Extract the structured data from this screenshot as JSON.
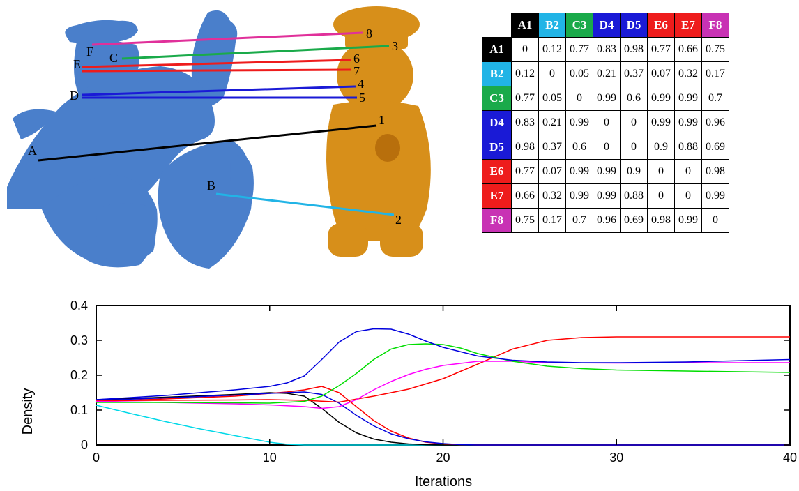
{
  "scene": {
    "left_labels": [
      "A",
      "B",
      "C",
      "D",
      "E",
      "F"
    ],
    "right_labels": [
      "1",
      "2",
      "3",
      "4",
      "5",
      "6",
      "7",
      "8"
    ],
    "shape_colors": {
      "left_models": "#4a7fcb",
      "right_model": "#d78f1a"
    }
  },
  "matrix": {
    "headers": [
      {
        "label": "A1",
        "color": "#000000"
      },
      {
        "label": "B2",
        "color": "#21b4e6"
      },
      {
        "label": "C3",
        "color": "#1aaa4a"
      },
      {
        "label": "D4",
        "color": "#1a1ad6"
      },
      {
        "label": "D5",
        "color": "#1a1ad6"
      },
      {
        "label": "E6",
        "color": "#ee1c1c"
      },
      {
        "label": "E7",
        "color": "#ee1c1c"
      },
      {
        "label": "F8",
        "color": "#c832b4"
      }
    ],
    "rows": [
      [
        "0",
        "0.12",
        "0.77",
        "0.83",
        "0.98",
        "0.77",
        "0.66",
        "0.75"
      ],
      [
        "0.12",
        "0",
        "0.05",
        "0.21",
        "0.37",
        "0.07",
        "0.32",
        "0.17"
      ],
      [
        "0.77",
        "0.05",
        "0",
        "0.99",
        "0.6",
        "0.99",
        "0.99",
        "0.7"
      ],
      [
        "0.83",
        "0.21",
        "0.99",
        "0",
        "0",
        "0.99",
        "0.99",
        "0.96"
      ],
      [
        "0.98",
        "0.37",
        "0.6",
        "0",
        "0",
        "0.9",
        "0.88",
        "0.69"
      ],
      [
        "0.77",
        "0.07",
        "0.99",
        "0.99",
        "0.9",
        "0",
        "0",
        "0.98"
      ],
      [
        "0.66",
        "0.32",
        "0.99",
        "0.99",
        "0.88",
        "0",
        "0",
        "0.99"
      ],
      [
        "0.75",
        "0.17",
        "0.7",
        "0.96",
        "0.69",
        "0.98",
        "0.99",
        "0"
      ]
    ]
  },
  "chart_data": {
    "type": "line",
    "xlabel": "Iterations",
    "ylabel": "Density",
    "xlim": [
      0,
      40
    ],
    "ylim": [
      0,
      0.4
    ],
    "xticks": [
      "0",
      "10",
      "20",
      "30",
      "40"
    ],
    "yticks": [
      "0",
      "0.1",
      "0.2",
      "0.3",
      "0.4"
    ],
    "grid": false,
    "series": [
      {
        "color": "#00d8e8",
        "x": [
          0,
          2,
          4,
          6,
          8,
          10,
          11,
          12,
          40
        ],
        "y": [
          0.114,
          0.09,
          0.067,
          0.046,
          0.027,
          0.008,
          0.002,
          0,
          0
        ]
      },
      {
        "color": "#000000",
        "x": [
          0,
          4,
          8,
          10,
          11,
          12,
          13,
          14,
          15,
          16,
          17,
          18,
          19,
          20,
          40
        ],
        "y": [
          0.13,
          0.137,
          0.145,
          0.15,
          0.148,
          0.14,
          0.105,
          0.065,
          0.035,
          0.017,
          0.008,
          0.003,
          0.001,
          0,
          0
        ]
      },
      {
        "color": "#ff0000",
        "x": [
          0,
          4,
          8,
          10,
          11,
          12,
          13,
          14,
          15,
          16,
          17,
          18,
          19,
          20,
          21,
          22,
          40
        ],
        "y": [
          0.125,
          0.132,
          0.14,
          0.148,
          0.152,
          0.158,
          0.168,
          0.15,
          0.11,
          0.07,
          0.04,
          0.02,
          0.008,
          0.003,
          0.001,
          0,
          0
        ]
      },
      {
        "color": "#0000dd",
        "x": [
          0,
          4,
          8,
          10,
          11,
          12,
          13,
          14,
          15,
          16,
          17,
          18,
          19,
          20,
          21,
          22,
          40
        ],
        "y": [
          0.128,
          0.135,
          0.143,
          0.148,
          0.15,
          0.152,
          0.145,
          0.12,
          0.085,
          0.055,
          0.032,
          0.018,
          0.009,
          0.004,
          0.001,
          0,
          0
        ]
      },
      {
        "color": "#ff0000",
        "x": [
          0,
          4,
          8,
          10,
          12,
          14,
          16,
          18,
          20,
          22,
          24,
          26,
          28,
          30,
          32,
          34,
          36,
          38,
          40
        ],
        "y": [
          0.127,
          0.128,
          0.129,
          0.13,
          0.128,
          0.123,
          0.14,
          0.16,
          0.19,
          0.232,
          0.275,
          0.3,
          0.308,
          0.31,
          0.31,
          0.31,
          0.31,
          0.31,
          0.31
        ]
      },
      {
        "color": "#ff00ff",
        "x": [
          0,
          4,
          8,
          10,
          12,
          13,
          14,
          15,
          16,
          17,
          18,
          19,
          20,
          22,
          24,
          26,
          30,
          34,
          40
        ],
        "y": [
          0.125,
          0.122,
          0.118,
          0.115,
          0.11,
          0.105,
          0.11,
          0.13,
          0.158,
          0.182,
          0.202,
          0.217,
          0.228,
          0.24,
          0.24,
          0.236,
          0.235,
          0.236,
          0.236
        ]
      },
      {
        "color": "#00dd00",
        "x": [
          0,
          4,
          8,
          10,
          12,
          13,
          14,
          15,
          16,
          17,
          18,
          19,
          20,
          21,
          22,
          24,
          26,
          28,
          30,
          34,
          40
        ],
        "y": [
          0.122,
          0.122,
          0.121,
          0.12,
          0.125,
          0.14,
          0.17,
          0.205,
          0.245,
          0.275,
          0.288,
          0.29,
          0.288,
          0.278,
          0.262,
          0.24,
          0.226,
          0.219,
          0.215,
          0.212,
          0.208
        ]
      },
      {
        "color": "#0000dd",
        "x": [
          0,
          4,
          8,
          10,
          11,
          12,
          13,
          14,
          15,
          16,
          17,
          18,
          19,
          20,
          22,
          24,
          26,
          28,
          30,
          34,
          40
        ],
        "y": [
          0.13,
          0.142,
          0.158,
          0.168,
          0.178,
          0.198,
          0.245,
          0.295,
          0.325,
          0.333,
          0.332,
          0.318,
          0.298,
          0.28,
          0.255,
          0.243,
          0.238,
          0.236,
          0.236,
          0.238,
          0.245
        ]
      }
    ]
  }
}
